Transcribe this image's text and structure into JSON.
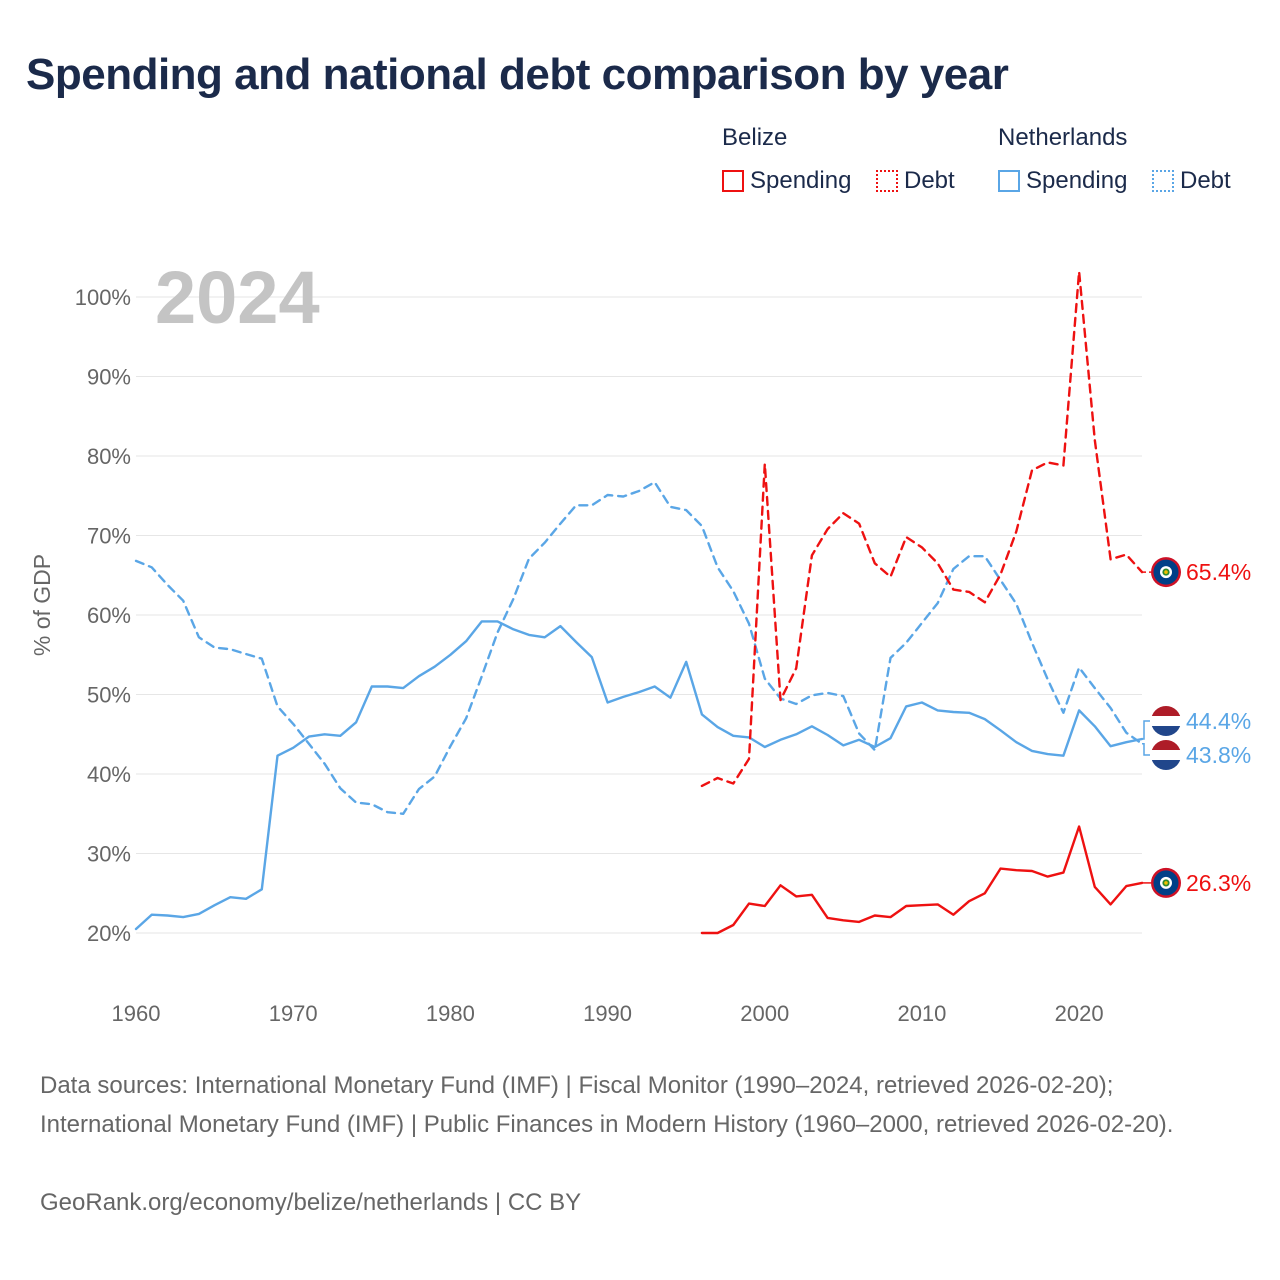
{
  "chart_data": {
    "type": "line",
    "title": "Spending and national debt comparison by year",
    "ylabel": "% of GDP",
    "xlabel": "",
    "year_label": "2024",
    "xlim": [
      1960,
      2024
    ],
    "ylim": [
      20,
      100
    ],
    "x_ticks": [
      "1960",
      "1970",
      "1980",
      "1990",
      "2000",
      "2010",
      "2020"
    ],
    "y_ticks": [
      "20%",
      "30%",
      "40%",
      "50%",
      "60%",
      "70%",
      "80%",
      "90%",
      "100%"
    ],
    "legend": {
      "groups": [
        {
          "name": "Belize",
          "items": [
            "Spending",
            "Debt"
          ]
        },
        {
          "name": "Netherlands",
          "items": [
            "Spending",
            "Debt"
          ]
        }
      ]
    },
    "colors": {
      "belize": "#ee1111",
      "netherlands": "#5aa6e6"
    },
    "series": [
      {
        "name": "Netherlands Debt",
        "country": "Netherlands",
        "metric": "Debt",
        "style": "dashed",
        "color": "#5aa6e6",
        "x": [
          1960,
          1961,
          1962,
          1963,
          1964,
          1965,
          1966,
          1967,
          1968,
          1969,
          1970,
          1971,
          1972,
          1973,
          1974,
          1975,
          1976,
          1977,
          1978,
          1979,
          1980,
          1981,
          1982,
          1983,
          1984,
          1985,
          1986,
          1987,
          1988,
          1989,
          1990,
          1991,
          1992,
          1993,
          1994,
          1995,
          1996,
          1997,
          1998,
          1999,
          2000,
          2001,
          2002,
          2003,
          2004,
          2005,
          2006,
          2007,
          2008,
          2009,
          2010,
          2011,
          2012,
          2013,
          2014,
          2015,
          2016,
          2017,
          2018,
          2019,
          2020,
          2021,
          2022,
          2023,
          2024
        ],
        "values": [
          66.8,
          66.0,
          63.8,
          61.8,
          57.2,
          55.9,
          55.7,
          55.1,
          54.5,
          48.5,
          46.3,
          43.8,
          41.3,
          38.2,
          36.4,
          36.2,
          35.2,
          35.0,
          38.1,
          39.7,
          43.5,
          47.0,
          52.3,
          57.8,
          62.0,
          67.1,
          69.1,
          71.5,
          73.8,
          73.8,
          75.1,
          74.9,
          75.6,
          76.7,
          73.6,
          73.2,
          71.2,
          66.0,
          63.0,
          58.9,
          52.0,
          49.5,
          48.8,
          49.9,
          50.2,
          49.8,
          45.1,
          43.0,
          54.6,
          56.5,
          59.0,
          61.5,
          65.8,
          67.4,
          67.4,
          64.4,
          61.4,
          56.5,
          51.9,
          47.7,
          53.4,
          50.8,
          48.3,
          45.2,
          43.8
        ],
        "last_label": "43.8%"
      },
      {
        "name": "Netherlands Spending",
        "country": "Netherlands",
        "metric": "Spending",
        "style": "solid",
        "color": "#5aa6e6",
        "x": [
          1960,
          1961,
          1962,
          1963,
          1964,
          1965,
          1966,
          1967,
          1968,
          1969,
          1970,
          1971,
          1972,
          1973,
          1974,
          1975,
          1976,
          1977,
          1978,
          1979,
          1980,
          1981,
          1982,
          1983,
          1984,
          1985,
          1986,
          1987,
          1988,
          1989,
          1990,
          1991,
          1992,
          1993,
          1994,
          1995,
          1996,
          1997,
          1998,
          1999,
          2000,
          2001,
          2002,
          2003,
          2004,
          2005,
          2006,
          2007,
          2008,
          2009,
          2010,
          2011,
          2012,
          2013,
          2014,
          2015,
          2016,
          2017,
          2018,
          2019,
          2020,
          2021,
          2022,
          2023,
          2024
        ],
        "values": [
          20.5,
          22.3,
          22.2,
          22.0,
          22.4,
          23.5,
          24.5,
          24.3,
          25.5,
          42.3,
          43.3,
          44.7,
          45.0,
          44.8,
          46.5,
          51.0,
          51.0,
          50.8,
          52.3,
          53.5,
          55.0,
          56.7,
          59.2,
          59.2,
          58.2,
          57.5,
          57.2,
          58.6,
          56.6,
          54.7,
          49.0,
          49.7,
          50.3,
          51.0,
          49.6,
          54.1,
          47.5,
          45.9,
          44.8,
          44.6,
          43.4,
          44.3,
          45.0,
          46.0,
          44.9,
          43.6,
          44.3,
          43.4,
          44.5,
          48.5,
          49.0,
          48.0,
          47.8,
          47.7,
          46.9,
          45.5,
          44.0,
          42.9,
          42.5,
          42.3,
          48.0,
          46.0,
          43.5,
          44.0,
          44.4
        ],
        "last_label": "44.4%"
      },
      {
        "name": "Belize Debt",
        "country": "Belize",
        "metric": "Debt",
        "style": "dashed",
        "color": "#ee1111",
        "x": [
          1996,
          1997,
          1998,
          1999,
          2000,
          2001,
          2002,
          2003,
          2004,
          2005,
          2006,
          2007,
          2008,
          2009,
          2010,
          2011,
          2012,
          2013,
          2014,
          2015,
          2016,
          2017,
          2018,
          2019,
          2020,
          2021,
          2022,
          2023,
          2024
        ],
        "values": [
          38.5,
          39.5,
          38.8,
          41.9,
          79.0,
          49.3,
          53.3,
          67.5,
          70.8,
          72.8,
          71.5,
          66.5,
          64.8,
          69.8,
          68.5,
          66.5,
          63.2,
          62.9,
          61.6,
          65.1,
          70.5,
          78.2,
          79.2,
          78.8,
          103.2,
          82.0,
          67.0,
          67.6,
          65.4
        ],
        "last_label": "65.4%"
      },
      {
        "name": "Belize Spending",
        "country": "Belize",
        "metric": "Spending",
        "style": "solid",
        "color": "#ee1111",
        "x": [
          1996,
          1997,
          1998,
          1999,
          2000,
          2001,
          2002,
          2003,
          2004,
          2005,
          2006,
          2007,
          2008,
          2009,
          2010,
          2011,
          2012,
          2013,
          2014,
          2015,
          2016,
          2017,
          2018,
          2019,
          2020,
          2021,
          2022,
          2023,
          2024
        ],
        "values": [
          20.0,
          20.0,
          21.0,
          23.7,
          23.4,
          26.0,
          24.6,
          24.8,
          21.9,
          21.6,
          21.4,
          22.2,
          22.0,
          23.4,
          23.5,
          23.6,
          22.3,
          24.0,
          25.0,
          28.1,
          27.9,
          27.8,
          27.1,
          27.6,
          33.4,
          25.8,
          23.6,
          25.9,
          26.3
        ],
        "last_label": "26.3%"
      }
    ]
  },
  "footer": {
    "sources": "Data sources: International Monetary Fund (IMF) | Fiscal Monitor (1990–2024, retrieved 2026-02-20); International Monetary Fund (IMF) | Public Finances in Modern History (1960–2000, retrieved 2026-02-20).",
    "credit": "GeoRank.org/economy/belize/netherlands | CC BY"
  }
}
